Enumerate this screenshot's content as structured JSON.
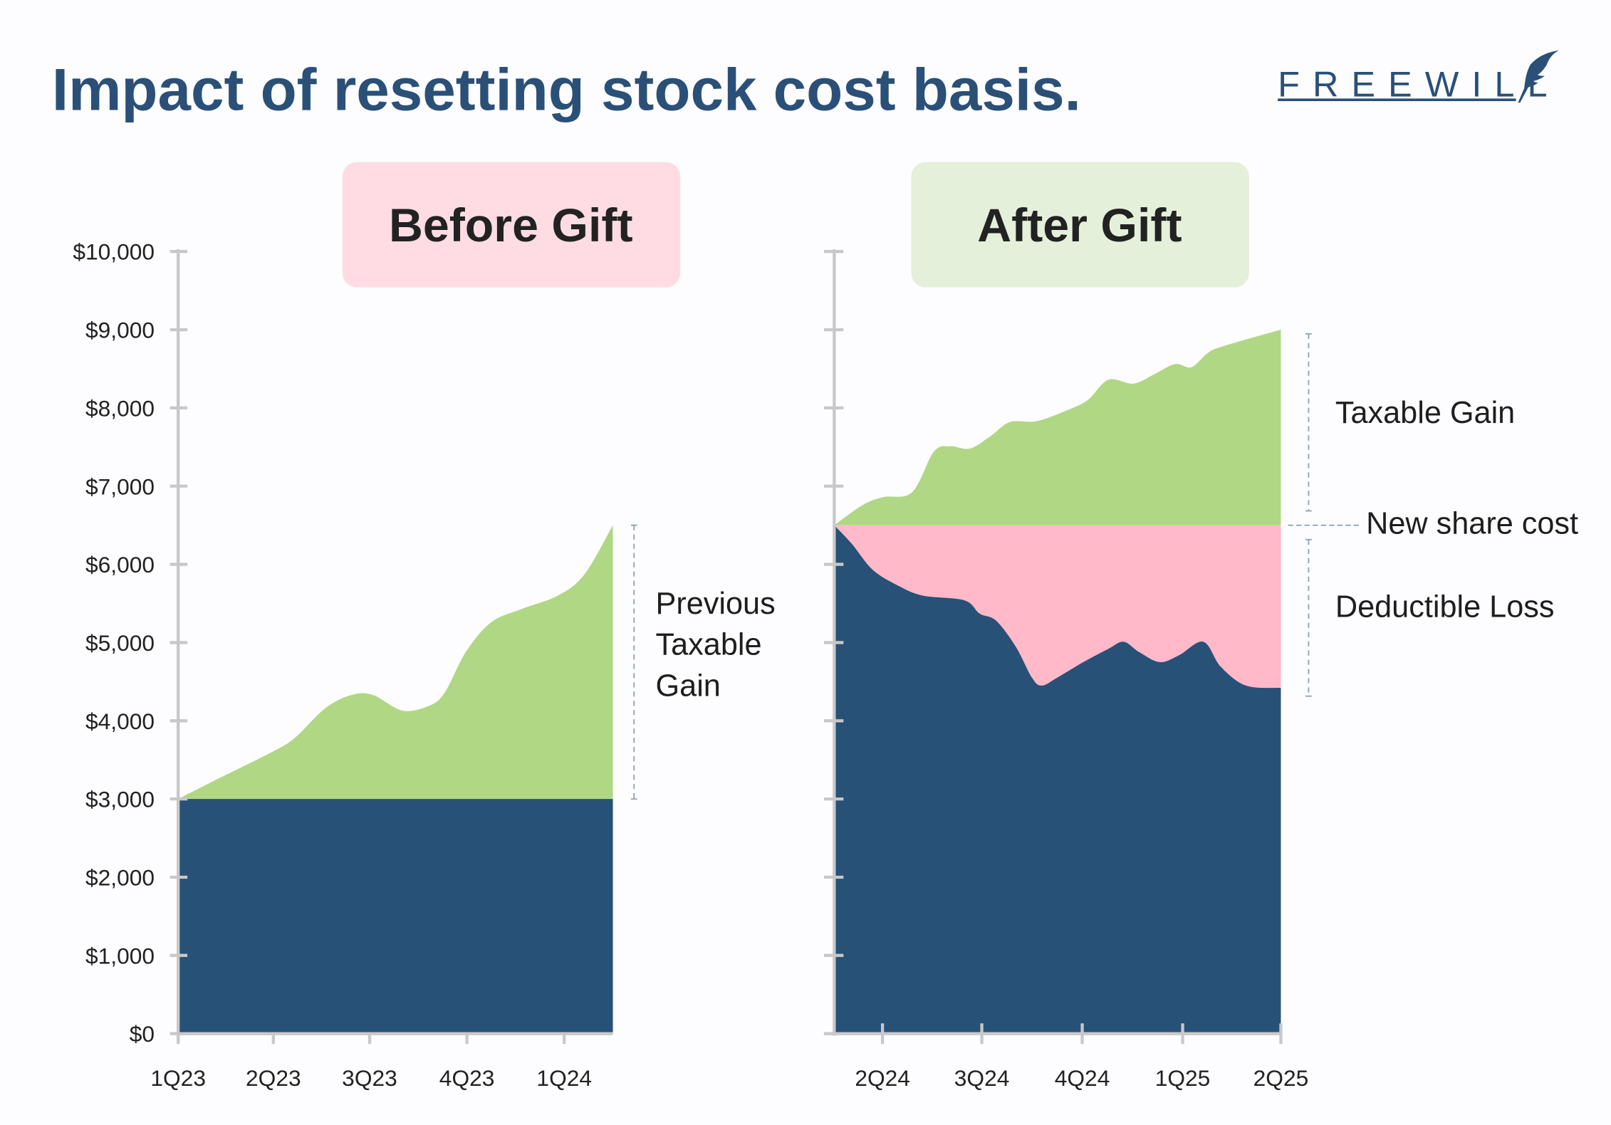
{
  "title": "Impact of resetting stock cost basis.",
  "logo": {
    "text": "FREEWILL",
    "icon": "quill-feather-icon"
  },
  "colors": {
    "title": "#2a5078",
    "cost_basis": "#275177",
    "gain": "#b0d783",
    "loss": "#ffb9c9",
    "before_badge": "#ffdce3",
    "after_badge": "#e4f0d9",
    "axis": "#c8c8c8",
    "bracket": "#8fa3ba"
  },
  "chart_data": [
    {
      "type": "area",
      "title": "Before Gift",
      "xlabel": "",
      "ylabel": "",
      "ylim": [
        0,
        10000
      ],
      "grid": false,
      "yticks": [
        {
          "value": 0,
          "label": "$0"
        },
        {
          "value": 1000,
          "label": "$1,000"
        },
        {
          "value": 2000,
          "label": "$2,000"
        },
        {
          "value": 3000,
          "label": "$3,000"
        },
        {
          "value": 4000,
          "label": "$4,000"
        },
        {
          "value": 5000,
          "label": "$5,000"
        },
        {
          "value": 6000,
          "label": "$6,000"
        },
        {
          "value": 7000,
          "label": "$7,000"
        },
        {
          "value": 8000,
          "label": "$8,000"
        },
        {
          "value": 9000,
          "label": "$9,000"
        },
        {
          "value": 10000,
          "label": "$10,000"
        }
      ],
      "xticks": [
        {
          "date": "2023-01-01",
          "label": "1Q23"
        },
        {
          "date": "2023-04-01",
          "label": "2Q23"
        },
        {
          "date": "2023-07-01",
          "label": "3Q23"
        },
        {
          "date": "2023-10-01",
          "label": "4Q23"
        },
        {
          "date": "2024-01-01",
          "label": "1Q24"
        }
      ],
      "cost_basis": 3000,
      "stock_value": [
        {
          "x": "2023-01-01",
          "y": 3000
        },
        {
          "x": "2023-02-05",
          "y": 3240
        },
        {
          "x": "2023-04-01",
          "y": 3610
        },
        {
          "x": "2023-04-22",
          "y": 3790
        },
        {
          "x": "2023-05-20",
          "y": 4160
        },
        {
          "x": "2023-06-14",
          "y": 4330
        },
        {
          "x": "2023-07-04",
          "y": 4330
        },
        {
          "x": "2023-08-01",
          "y": 4130
        },
        {
          "x": "2023-08-26",
          "y": 4190
        },
        {
          "x": "2023-09-10",
          "y": 4360
        },
        {
          "x": "2023-09-30",
          "y": 4880
        },
        {
          "x": "2023-10-24",
          "y": 5260
        },
        {
          "x": "2023-11-22",
          "y": 5430
        },
        {
          "x": "2023-12-26",
          "y": 5600
        },
        {
          "x": "2024-01-20",
          "y": 5870
        },
        {
          "x": "2024-02-16",
          "y": 6500
        }
      ],
      "annotations": [
        {
          "text_lines": [
            "Previous",
            "Taxable",
            "Gain"
          ],
          "from": 3000,
          "to": 6500
        }
      ]
    },
    {
      "type": "area",
      "title": "After Gift",
      "xlabel": "",
      "ylabel": "",
      "ylim": [
        0,
        10000
      ],
      "grid": false,
      "yticks": [
        0,
        1000,
        2000,
        3000,
        4000,
        5000,
        6000,
        7000,
        8000,
        9000,
        10000
      ],
      "xticks": [
        {
          "date": "2024-04-01",
          "label": "2Q24"
        },
        {
          "date": "2024-07-01",
          "label": "3Q24"
        },
        {
          "date": "2024-10-01",
          "label": "4Q24"
        },
        {
          "date": "2025-01-01",
          "label": "1Q25"
        },
        {
          "date": "2025-04-01",
          "label": "2Q25"
        }
      ],
      "new_share_cost": 6500,
      "stock_value_high": [
        {
          "x": "2024-02-16",
          "y": 6500
        },
        {
          "x": "2024-03-14",
          "y": 6760
        },
        {
          "x": "2024-04-02",
          "y": 6860
        },
        {
          "x": "2024-04-28",
          "y": 6920
        },
        {
          "x": "2024-05-18",
          "y": 7440
        },
        {
          "x": "2024-06-02",
          "y": 7510
        },
        {
          "x": "2024-06-20",
          "y": 7480
        },
        {
          "x": "2024-07-09",
          "y": 7640
        },
        {
          "x": "2024-07-27",
          "y": 7820
        },
        {
          "x": "2024-08-20",
          "y": 7830
        },
        {
          "x": "2024-09-17",
          "y": 7970
        },
        {
          "x": "2024-10-06",
          "y": 8100
        },
        {
          "x": "2024-10-25",
          "y": 8360
        },
        {
          "x": "2024-11-17",
          "y": 8310
        },
        {
          "x": "2024-12-06",
          "y": 8430
        },
        {
          "x": "2024-12-25",
          "y": 8560
        },
        {
          "x": "2025-01-09",
          "y": 8520
        },
        {
          "x": "2025-01-23",
          "y": 8690
        },
        {
          "x": "2025-02-05",
          "y": 8780
        },
        {
          "x": "2025-04-01",
          "y": 9000
        }
      ],
      "stock_value_low": [
        {
          "x": "2024-02-16",
          "y": 6500
        },
        {
          "x": "2024-03-04",
          "y": 6260
        },
        {
          "x": "2024-03-23",
          "y": 5930
        },
        {
          "x": "2024-04-15",
          "y": 5730
        },
        {
          "x": "2024-05-08",
          "y": 5600
        },
        {
          "x": "2024-06-15",
          "y": 5540
        },
        {
          "x": "2024-06-29",
          "y": 5370
        },
        {
          "x": "2024-07-14",
          "y": 5280
        },
        {
          "x": "2024-08-01",
          "y": 4950
        },
        {
          "x": "2024-08-16",
          "y": 4550
        },
        {
          "x": "2024-08-25",
          "y": 4450
        },
        {
          "x": "2024-09-08",
          "y": 4550
        },
        {
          "x": "2024-10-02",
          "y": 4750
        },
        {
          "x": "2024-10-25",
          "y": 4920
        },
        {
          "x": "2024-11-08",
          "y": 5010
        },
        {
          "x": "2024-11-22",
          "y": 4880
        },
        {
          "x": "2024-12-11",
          "y": 4750
        },
        {
          "x": "2024-12-29",
          "y": 4840
        },
        {
          "x": "2025-01-20",
          "y": 5010
        },
        {
          "x": "2025-02-05",
          "y": 4690
        },
        {
          "x": "2025-02-28",
          "y": 4450
        },
        {
          "x": "2025-04-01",
          "y": 4420
        }
      ],
      "annotations": [
        {
          "text": "Taxable Gain",
          "from": 6500,
          "to": 9000
        },
        {
          "text": "New share cost",
          "at": 6500
        },
        {
          "text": "Deductible Loss",
          "from": 4420,
          "to": 6500
        }
      ]
    }
  ]
}
